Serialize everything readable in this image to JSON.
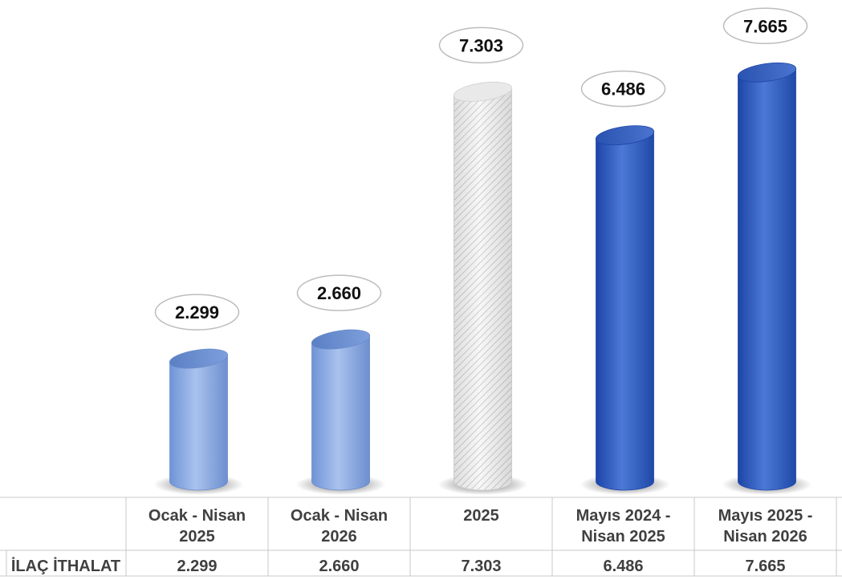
{
  "chart_data": {
    "type": "bar",
    "categories": [
      [
        "Ocak - Nisan",
        "2025"
      ],
      [
        "Ocak - Nisan",
        "2026"
      ],
      [
        "2025"
      ],
      [
        "Mayıs 2024 -",
        "Nisan 2025"
      ],
      [
        "Mayıs 2025 -",
        "Nisan 2026"
      ]
    ],
    "series": [
      {
        "name": "İLAÇ İTHALAT",
        "values": [
          2.299,
          2.66,
          7.303,
          6.486,
          7.665
        ],
        "labels": [
          "2.299",
          "2.660",
          "7.303",
          "6.486",
          "7.665"
        ]
      }
    ],
    "bar_styles": [
      "light-blue",
      "light-blue",
      "white-hatched",
      "dark-blue",
      "dark-blue"
    ],
    "ylim": [
      0,
      8
    ],
    "grid": false,
    "legend": "none",
    "data_table": true
  },
  "colors": {
    "light_blue": "#8fb0e6",
    "dark_blue": "#2f5bc0",
    "white_bar": "#f4f4f4",
    "grid_line": "#c8c8c8",
    "text": "#404040"
  }
}
